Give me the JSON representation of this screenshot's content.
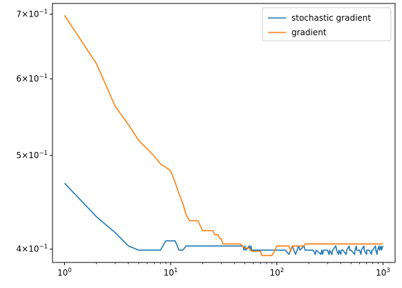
{
  "chart_data": {
    "type": "line",
    "title": "",
    "xlabel": "",
    "ylabel": "",
    "xscale": "log",
    "yscale": "log",
    "xlim": [
      0.77,
      1300
    ],
    "ylim": [
      0.3875,
      0.718
    ],
    "grid": false,
    "legend_position": "top-right",
    "x_ticks": [
      {
        "value": 1,
        "label": "10^0"
      },
      {
        "value": 10,
        "label": "10^1"
      },
      {
        "value": 100,
        "label": "10^2"
      },
      {
        "value": 1000,
        "label": "10^3"
      }
    ],
    "y_ticks": [
      {
        "value": 0.4,
        "label": "4×10^−1"
      },
      {
        "value": 0.5,
        "label": "5×10^−1"
      },
      {
        "value": 0.6,
        "label": "6×10^−1"
      },
      {
        "value": 0.7,
        "label": "7×10^−1"
      }
    ],
    "series": [
      {
        "name": "stochastic gradient",
        "color": "#1f77b4",
        "points": [
          [
            1,
            0.468
          ],
          [
            2,
            0.432
          ],
          [
            3,
            0.416
          ],
          [
            4,
            0.403
          ],
          [
            5,
            0.399
          ],
          [
            6,
            0.399
          ],
          [
            7,
            0.399
          ],
          [
            8,
            0.399
          ],
          [
            9,
            0.408
          ],
          [
            10,
            0.408
          ],
          [
            11,
            0.408
          ],
          [
            12,
            0.399
          ],
          [
            13,
            0.399
          ],
          [
            14,
            0.403
          ],
          [
            20,
            0.403
          ],
          [
            30,
            0.403
          ],
          [
            48,
            0.403
          ],
          [
            49,
            0.399
          ],
          [
            50,
            0.403
          ],
          [
            51,
            0.399
          ],
          [
            55,
            0.403
          ],
          [
            56,
            0.399
          ],
          [
            57,
            0.403
          ],
          [
            58,
            0.399
          ],
          [
            90,
            0.399
          ],
          [
            120,
            0.399
          ],
          [
            130,
            0.395
          ],
          [
            135,
            0.399
          ],
          [
            140,
            0.403
          ],
          [
            145,
            0.399
          ],
          [
            150,
            0.395
          ],
          [
            155,
            0.399
          ],
          [
            160,
            0.403
          ],
          [
            165,
            0.399
          ],
          [
            180,
            0.403
          ],
          [
            185,
            0.399
          ],
          [
            220,
            0.399
          ],
          [
            230,
            0.395
          ],
          [
            235,
            0.399
          ],
          [
            260,
            0.395
          ],
          [
            265,
            0.399
          ],
          [
            270,
            0.395
          ],
          [
            275,
            0.399
          ],
          [
            300,
            0.399
          ],
          [
            310,
            0.395
          ],
          [
            315,
            0.399
          ],
          [
            330,
            0.395
          ],
          [
            335,
            0.399
          ],
          [
            360,
            0.403
          ],
          [
            365,
            0.399
          ],
          [
            380,
            0.395
          ],
          [
            385,
            0.399
          ],
          [
            400,
            0.395
          ],
          [
            405,
            0.399
          ],
          [
            420,
            0.399
          ],
          [
            450,
            0.395
          ],
          [
            455,
            0.399
          ],
          [
            480,
            0.403
          ],
          [
            485,
            0.399
          ],
          [
            500,
            0.399
          ],
          [
            540,
            0.395
          ],
          [
            545,
            0.399
          ],
          [
            560,
            0.403
          ],
          [
            565,
            0.399
          ],
          [
            600,
            0.399
          ],
          [
            620,
            0.395
          ],
          [
            625,
            0.399
          ],
          [
            660,
            0.403
          ],
          [
            665,
            0.399
          ],
          [
            700,
            0.395
          ],
          [
            705,
            0.399
          ],
          [
            740,
            0.399
          ],
          [
            780,
            0.395
          ],
          [
            785,
            0.399
          ],
          [
            800,
            0.399
          ],
          [
            850,
            0.403
          ],
          [
            855,
            0.399
          ],
          [
            880,
            0.395
          ],
          [
            885,
            0.399
          ],
          [
            920,
            0.403
          ],
          [
            925,
            0.399
          ],
          [
            960,
            0.403
          ],
          [
            965,
            0.399
          ],
          [
            1000,
            0.403
          ]
        ]
      },
      {
        "name": "gradient",
        "color": "#ff7f0e",
        "points": [
          [
            1,
            0.698
          ],
          [
            2,
            0.622
          ],
          [
            3,
            0.562
          ],
          [
            4,
            0.538
          ],
          [
            5,
            0.518
          ],
          [
            6,
            0.508
          ],
          [
            7,
            0.499
          ],
          [
            8,
            0.49
          ],
          [
            9,
            0.486
          ],
          [
            10,
            0.482
          ],
          [
            11,
            0.469
          ],
          [
            12,
            0.456
          ],
          [
            13,
            0.446
          ],
          [
            14,
            0.434
          ],
          [
            15,
            0.428
          ],
          [
            16,
            0.428
          ],
          [
            17,
            0.428
          ],
          [
            18,
            0.428
          ],
          [
            19,
            0.423
          ],
          [
            20,
            0.418
          ],
          [
            25,
            0.418
          ],
          [
            26,
            0.414
          ],
          [
            28,
            0.414
          ],
          [
            29,
            0.41
          ],
          [
            30,
            0.41
          ],
          [
            31,
            0.405
          ],
          [
            45,
            0.405
          ],
          [
            50,
            0.401
          ],
          [
            55,
            0.401
          ],
          [
            58,
            0.398
          ],
          [
            70,
            0.398
          ],
          [
            72,
            0.394
          ],
          [
            90,
            0.394
          ],
          [
            95,
            0.398
          ],
          [
            100,
            0.403
          ],
          [
            130,
            0.403
          ],
          [
            135,
            0.398
          ],
          [
            140,
            0.403
          ],
          [
            180,
            0.403
          ],
          [
            185,
            0.405
          ],
          [
            200,
            0.405
          ],
          [
            250,
            0.405
          ],
          [
            300,
            0.405
          ],
          [
            400,
            0.405
          ],
          [
            500,
            0.405
          ],
          [
            600,
            0.405
          ],
          [
            700,
            0.405
          ],
          [
            800,
            0.405
          ],
          [
            900,
            0.405
          ],
          [
            1000,
            0.405
          ]
        ]
      }
    ]
  }
}
